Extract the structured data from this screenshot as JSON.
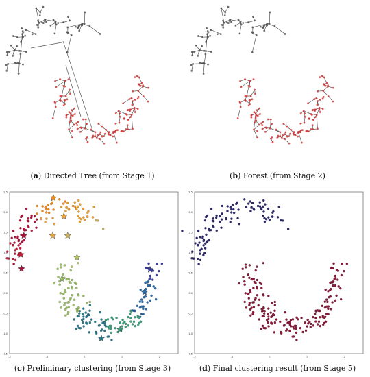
{
  "figure": {
    "panels": [
      {
        "letter": "a",
        "caption": "Directed Tree (from Stage 1)"
      },
      {
        "letter": "b",
        "caption": "Forest (from Stage 2)"
      },
      {
        "letter": "c",
        "caption": "Preliminary clustering (from Stage 3)"
      },
      {
        "letter": "d",
        "caption": "Final clustering result (from Stage 5)"
      }
    ],
    "colors": {
      "tree_edge": "#555555",
      "tree_node": "#d23a3a",
      "point_outline": "#333333",
      "final_cluster": "#8b1a3a",
      "final_cluster_upper": "#2e2a6e"
    }
  },
  "chart_data": [
    {
      "type": "scatter",
      "panel": "c",
      "xlim": [
        -2,
        2.5
      ],
      "ylim": [
        -1.5,
        2.5
      ],
      "xticks": [
        "-2",
        "-1",
        "0",
        "1",
        "2"
      ],
      "yticks": [
        "2.5",
        "2.0",
        "1.5",
        "1.0",
        "0.5",
        "0.0",
        "-0.5",
        "-1.0",
        "-1.5"
      ],
      "shape": "two interleaving moons",
      "cluster_centers": [
        {
          "x": -1.62,
          "y": 1.42
        },
        {
          "x": -1.7,
          "y": 0.95
        },
        {
          "x": -1.68,
          "y": 0.6
        },
        {
          "x": -0.83,
          "y": 2.35
        },
        {
          "x": -0.55,
          "y": 1.9
        },
        {
          "x": -0.85,
          "y": 1.42
        },
        {
          "x": -0.45,
          "y": 1.42
        },
        {
          "x": -0.2,
          "y": 0.88
        },
        {
          "x": -0.6,
          "y": 0.35
        },
        {
          "x": 1.75,
          "y": 0.58
        },
        {
          "x": 1.6,
          "y": 0.02
        },
        {
          "x": 0.45,
          "y": -1.12
        },
        {
          "x": 0.95,
          "y": -0.9
        }
      ]
    },
    {
      "type": "scatter",
      "panel": "d",
      "xlim": [
        -2,
        2.5
      ],
      "ylim": [
        -1.5,
        2.5
      ],
      "xticks": [
        "-2",
        "-1",
        "0",
        "1",
        "2"
      ],
      "yticks": [
        "2.5",
        "2.0",
        "1.5",
        "1.0",
        "0.5",
        "0.0",
        "-0.5",
        "-1.0",
        "-1.5"
      ],
      "shape": "two interleaving moons",
      "clusters": 2
    }
  ]
}
